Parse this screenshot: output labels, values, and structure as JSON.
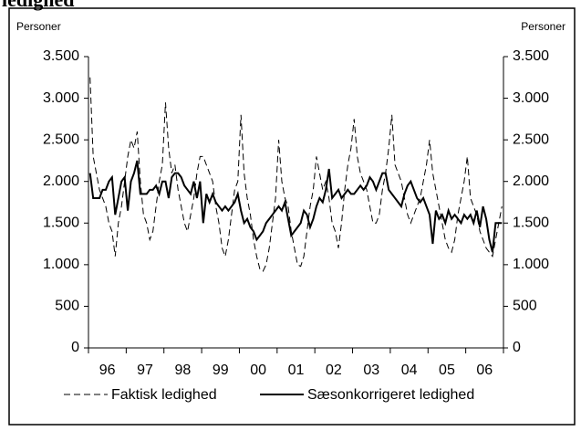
{
  "chart_data": {
    "type": "line",
    "title": "ledighed",
    "y_label": "Personer",
    "y2_label": "Personer",
    "categories": [
      null,
      null,
      null,
      null,
      null,
      "96",
      null,
      null,
      null,
      null,
      null,
      null,
      null,
      null,
      null,
      null,
      null,
      "97",
      null,
      null,
      null,
      null,
      null,
      null,
      null,
      null,
      null,
      null,
      null,
      "98",
      null,
      null,
      null,
      null,
      null,
      null,
      null,
      null,
      null,
      null,
      null,
      "99",
      null,
      null,
      null,
      null,
      null,
      null,
      null,
      null,
      null,
      null,
      null,
      "00",
      null,
      null,
      null,
      null,
      null,
      null,
      null,
      null,
      null,
      null,
      null,
      "01",
      null,
      null,
      null,
      null,
      null,
      null,
      null,
      null,
      null,
      null,
      null,
      "02",
      null,
      null,
      null,
      null,
      null,
      null,
      null,
      null,
      null,
      null,
      null,
      "03",
      null,
      null,
      null,
      null,
      null,
      null,
      null,
      null,
      null,
      null,
      null,
      "04",
      null,
      null,
      null,
      null,
      null,
      null,
      null,
      null,
      null,
      null,
      null,
      "05",
      null,
      null,
      null,
      null,
      null,
      null,
      null,
      null,
      null,
      null,
      null,
      "06",
      null,
      null,
      null,
      null,
      null,
      null
    ],
    "series": [
      {
        "name": "Faktisk ledighed",
        "color": "#000000",
        "dash": true,
        "values": [
          3250,
          2300,
          2100,
          1900,
          1800,
          1700,
          1500,
          1400,
          1100,
          1500,
          1700,
          2000,
          2300,
          2500,
          2400,
          2600,
          2000,
          1600,
          1500,
          1300,
          1400,
          1700,
          2000,
          2200,
          2950,
          2400,
          2100,
          2200,
          1900,
          1700,
          1500,
          1400,
          1600,
          1800,
          2100,
          2300,
          2300,
          2200,
          2100,
          2000,
          1700,
          1500,
          1200,
          1100,
          1300,
          1600,
          1900,
          2000,
          2800,
          2100,
          1800,
          1600,
          1300,
          1100,
          950,
          920,
          1000,
          1200,
          1500,
          1800,
          2500,
          2000,
          1800,
          1700,
          1400,
          1200,
          1000,
          980,
          1100,
          1400,
          1700,
          1900,
          2300,
          2100,
          1900,
          2000,
          1800,
          1500,
          1400,
          1200,
          1500,
          1900,
          2200,
          2400,
          2750,
          2300,
          2100,
          2000,
          1900,
          1700,
          1500,
          1500,
          1600,
          1900,
          2100,
          2400,
          2800,
          2200,
          2100,
          2000,
          1800,
          1600,
          1500,
          1600,
          1700,
          1800,
          2000,
          2200,
          2500,
          2100,
          1900,
          1700,
          1500,
          1300,
          1200,
          1150,
          1300,
          1600,
          1800,
          2000,
          2300,
          1800,
          1700,
          1600,
          1400,
          1300,
          1200,
          1150,
          1100,
          1300,
          1500,
          1700
        ]
      },
      {
        "name": "Sæsonkorrigeret ledighed",
        "color": "#000000",
        "dash": false,
        "values": [
          2100,
          1800,
          1800,
          1800,
          1900,
          1900,
          2000,
          2050,
          1600,
          1800,
          2000,
          2050,
          1650,
          2000,
          2100,
          2250,
          1850,
          1850,
          1850,
          1900,
          1900,
          1950,
          1850,
          2000,
          2000,
          1800,
          2050,
          2100,
          2100,
          2050,
          1950,
          1900,
          1850,
          2000,
          1800,
          2000,
          1500,
          1850,
          1750,
          1850,
          1750,
          1700,
          1650,
          1700,
          1650,
          1700,
          1750,
          1850,
          1650,
          1500,
          1550,
          1450,
          1400,
          1300,
          1350,
          1400,
          1500,
          1550,
          1600,
          1650,
          1700,
          1650,
          1750,
          1550,
          1350,
          1400,
          1450,
          1500,
          1650,
          1600,
          1450,
          1550,
          1700,
          1800,
          1750,
          1900,
          2150,
          1800,
          1850,
          1900,
          1800,
          1850,
          1900,
          1850,
          1850,
          1900,
          1950,
          1900,
          1950,
          2050,
          2000,
          1900,
          2000,
          2100,
          2100,
          1900,
          1850,
          1800,
          1750,
          1700,
          1850,
          1950,
          2000,
          1900,
          1800,
          1750,
          1800,
          1700,
          1600,
          1250,
          1650,
          1550,
          1600,
          1500,
          1650,
          1550,
          1600,
          1550,
          1500,
          1600,
          1550,
          1600,
          1500,
          1650,
          1450,
          1700,
          1550,
          1300,
          1150,
          1500,
          1500,
          1500
        ]
      }
    ],
    "ylim": [
      0,
      3500
    ],
    "yticks": [
      0,
      500,
      {
        "value": 1000,
        "label": "1.000"
      },
      {
        "value": 1500,
        "label": "1.500"
      },
      {
        "value": 2000,
        "label": "2.000"
      },
      {
        "value": 2500,
        "label": "2.500"
      },
      {
        "value": 3000,
        "label": "3.000"
      },
      {
        "value": 3500,
        "label": "3.500"
      }
    ],
    "y2lim": [
      0,
      3500
    ],
    "y2ticks": [
      0,
      500,
      {
        "value": 1000,
        "label": "1.000"
      },
      {
        "value": 1500,
        "label": "1.500"
      },
      {
        "value": 2000,
        "label": "2.000"
      },
      {
        "value": 2500,
        "label": "2.500"
      },
      {
        "value": 3000,
        "label": "3.000"
      },
      {
        "value": 3500,
        "label": "3.500"
      }
    ],
    "grid": false
  }
}
